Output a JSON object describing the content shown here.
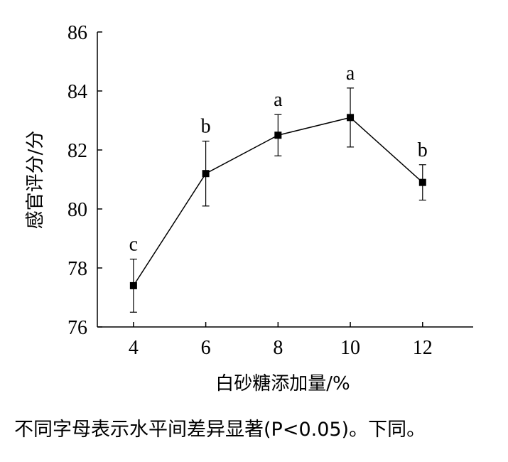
{
  "chart_data": {
    "type": "line",
    "xlabel": "白砂糖添加量/%",
    "ylabel": "感官评分/分",
    "x": [
      4,
      6,
      8,
      10,
      12
    ],
    "y": [
      77.4,
      81.2,
      82.5,
      83.1,
      80.9
    ],
    "error": [
      0.9,
      1.1,
      0.7,
      1.0,
      0.6
    ],
    "significance": [
      "c",
      "b",
      "a",
      "a",
      "b"
    ],
    "xticks": [
      4,
      6,
      8,
      10,
      12
    ],
    "yticks": [
      76,
      78,
      80,
      82,
      84,
      86
    ],
    "xlim": [
      3,
      13.4
    ],
    "ylim": [
      76,
      86
    ],
    "grid": false,
    "marker": "square",
    "color": "#000000"
  },
  "caption": "不同字母表示水平间差异显著(P<0.05)。下同。"
}
